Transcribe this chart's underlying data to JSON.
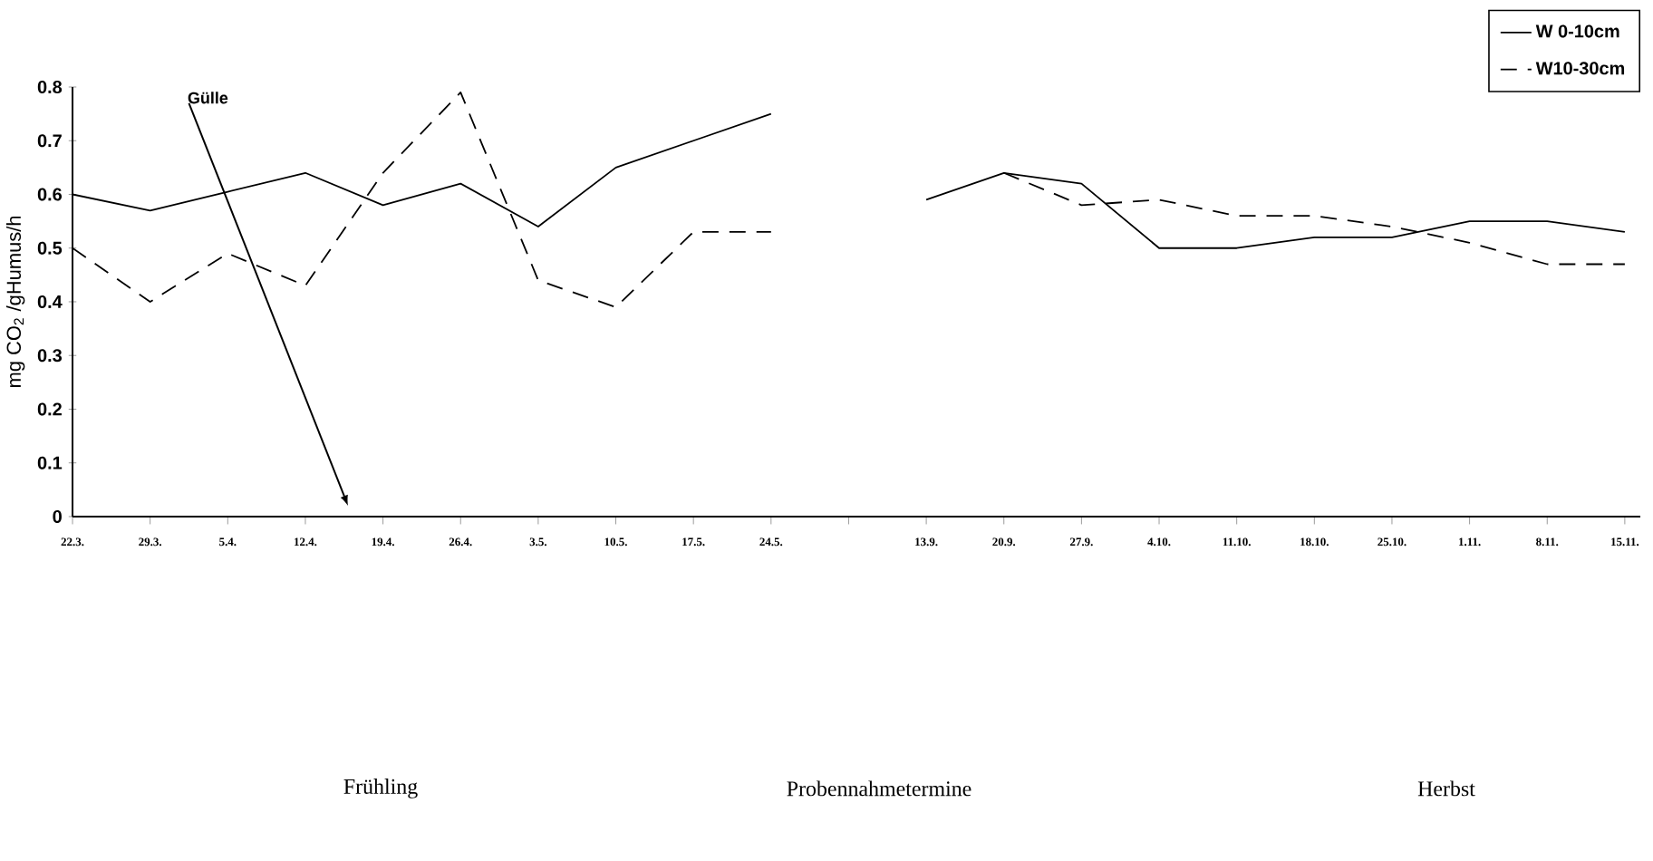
{
  "chart_data": {
    "type": "line",
    "categories": [
      "22.3.",
      "29.3.",
      "5.4.",
      "12.4.",
      "19.4.",
      "26.4.",
      "3.5.",
      "10.5.",
      "17.5.",
      "24.5.",
      null,
      "13.9.",
      "20.9.",
      "27.9.",
      "4.10.",
      "11.10.",
      "18.10.",
      "25.10.",
      "1.11.",
      "8.11.",
      "15.11."
    ],
    "series": [
      {
        "name": "W  0-10cm",
        "color": "#000000",
        "line_style": "solid",
        "values": [
          0.6,
          0.57,
          0.605,
          0.64,
          0.58,
          0.62,
          0.54,
          0.65,
          0.7,
          0.75,
          null,
          0.59,
          0.64,
          0.62,
          0.5,
          0.5,
          0.52,
          0.52,
          0.55,
          0.55,
          0.53
        ]
      },
      {
        "name": "W10-30cm",
        "color": "#000000",
        "line_style": "dashed",
        "values": [
          0.5,
          0.4,
          0.49,
          0.43,
          0.64,
          0.79,
          0.44,
          0.39,
          0.53,
          0.53,
          null,
          null,
          0.64,
          0.58,
          0.59,
          0.56,
          0.56,
          0.54,
          0.51,
          0.47,
          0.47
        ]
      }
    ],
    "ylabel": "mg CO$_{2}$ /gHumus/h",
    "annotations": [
      "Gülle",
      "Frühling",
      "Probennahmetermine",
      "Herbst"
    ],
    "ylim": [
      0,
      0.8
    ],
    "yticks": [
      0,
      0.1,
      0.2,
      0.3,
      0.4,
      0.5,
      0.6,
      0.7,
      0.8
    ],
    "legend": "top right",
    "grid": false,
    "marker": "none"
  }
}
